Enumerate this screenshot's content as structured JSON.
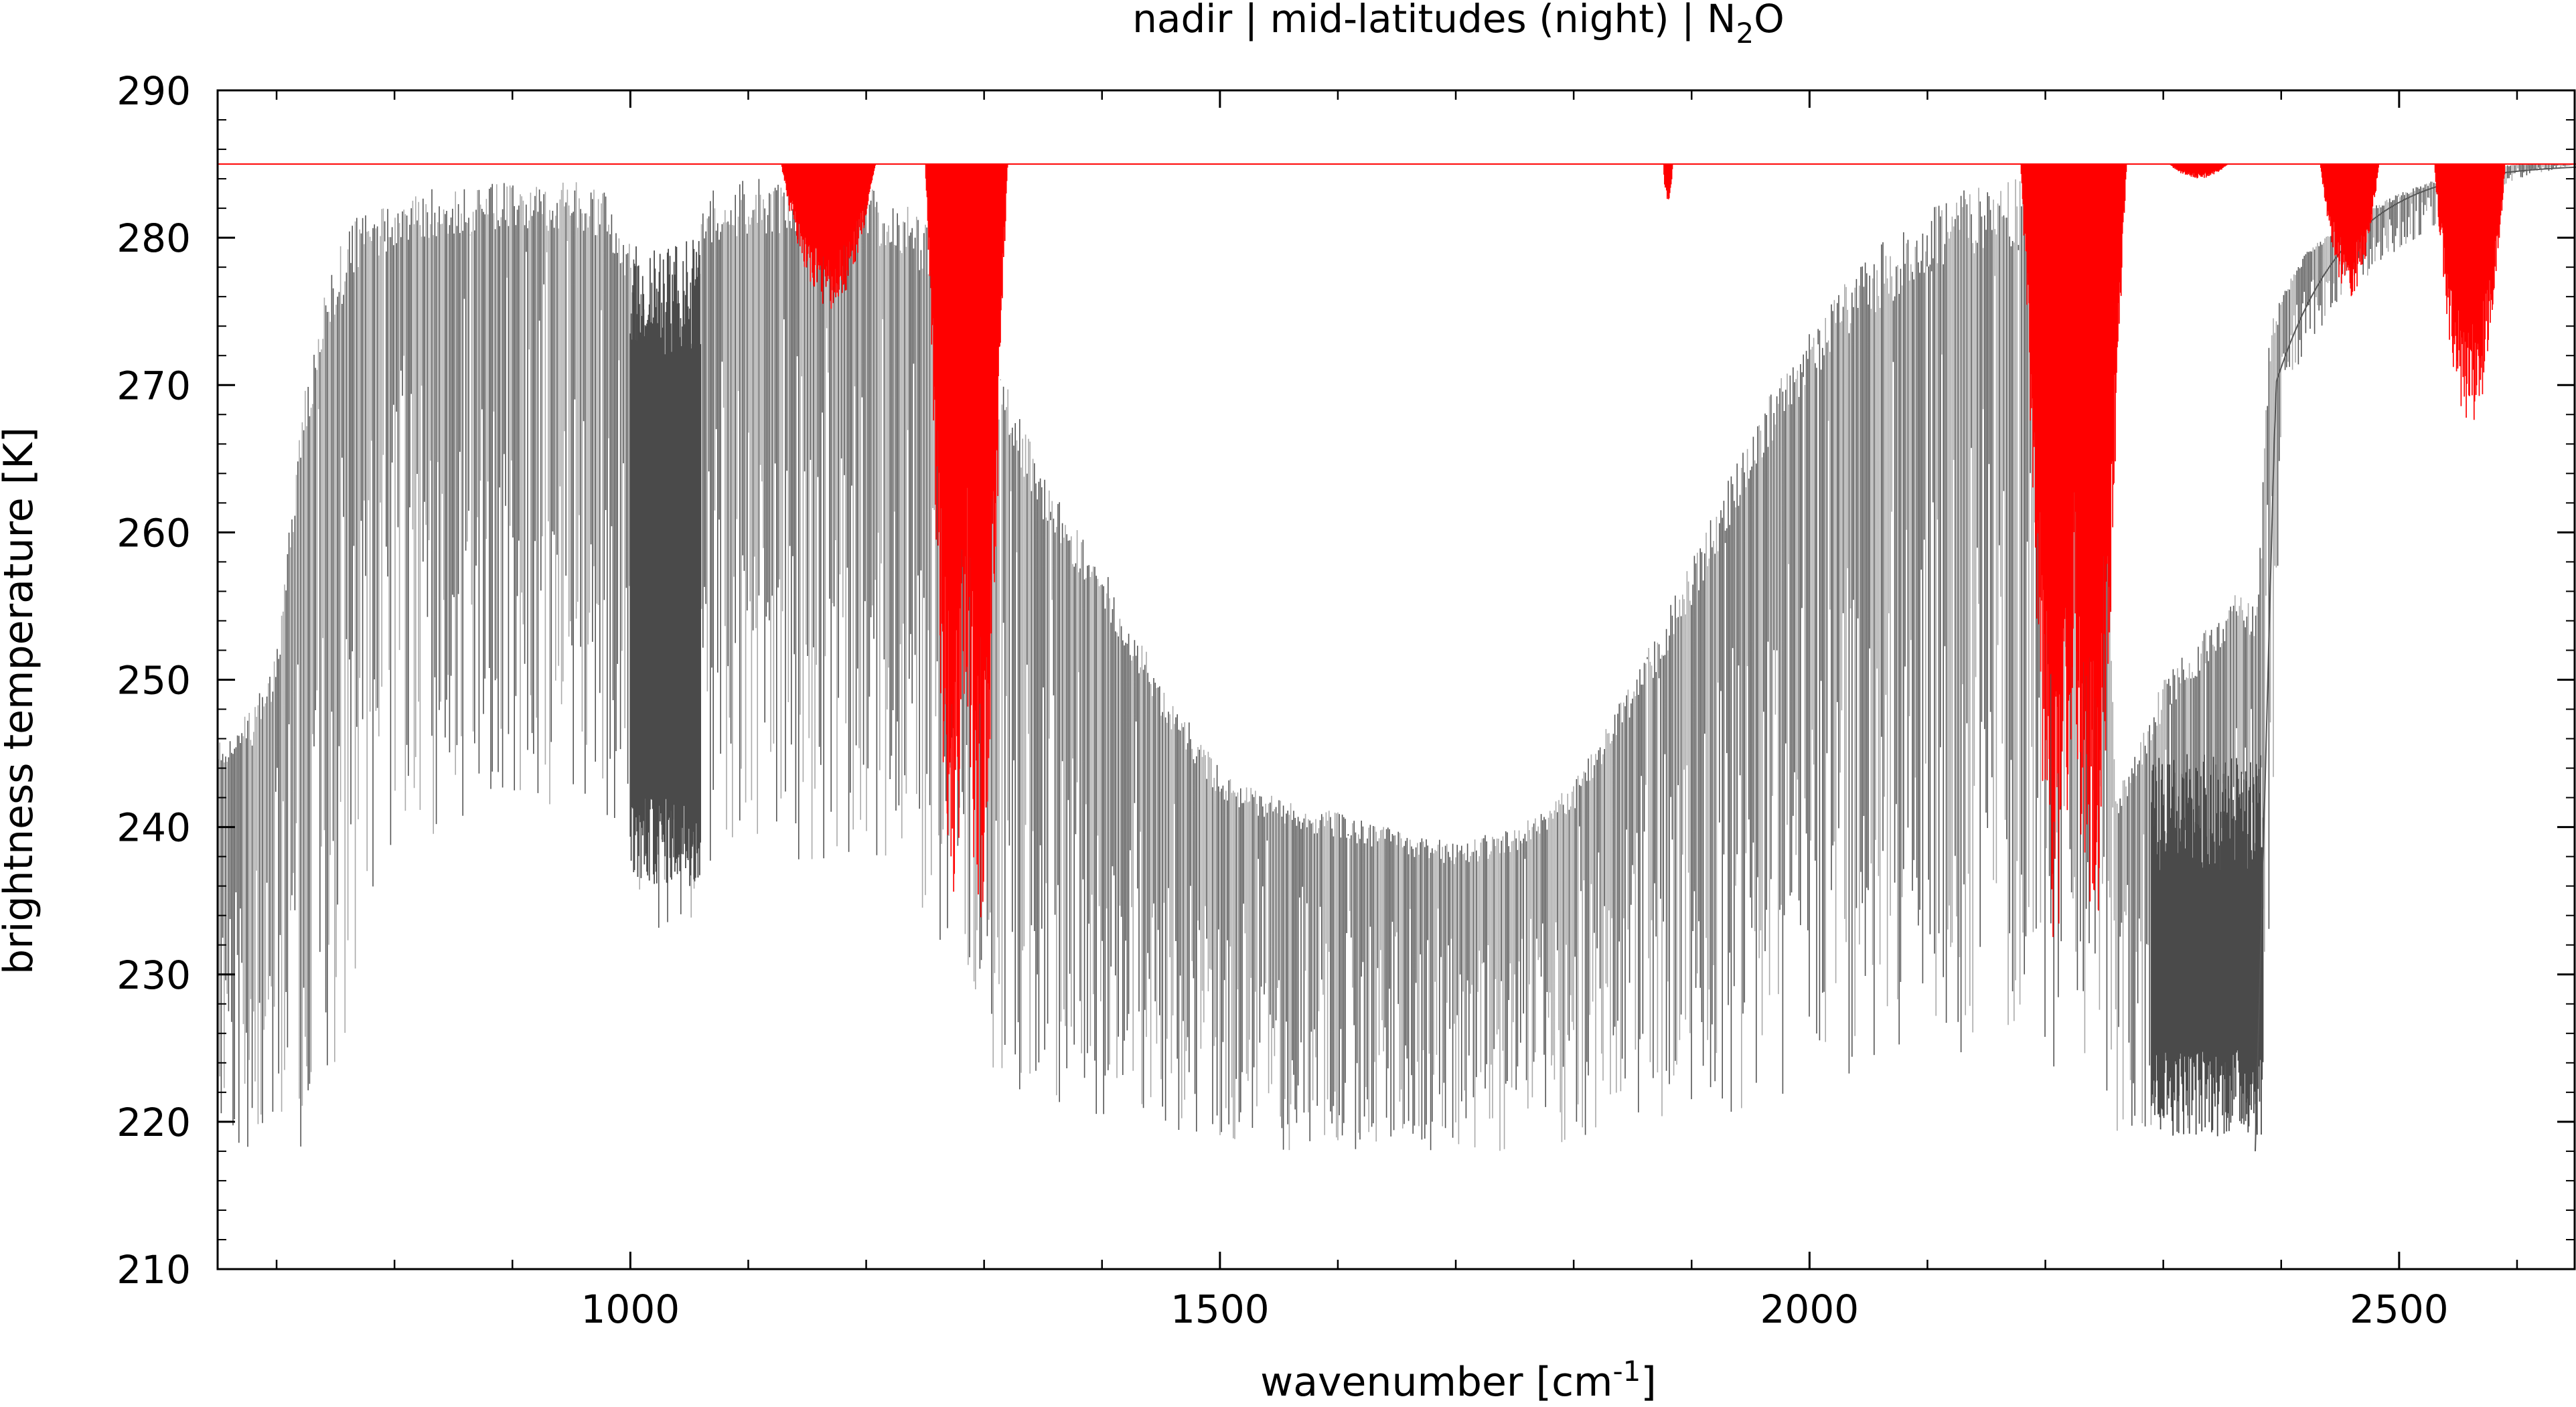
{
  "chart_data": {
    "type": "line",
    "title": {
      "prefix": "nadir | mid-latitudes (night) | N",
      "subscript": "2",
      "suffix": "O"
    },
    "xlabel": {
      "main": "wavenumber [cm",
      "superscript": "-1",
      "suffix": "]"
    },
    "ylabel": "brightness temperature [K]",
    "xlim": [
      650,
      2650
    ],
    "ylim": [
      210,
      290
    ],
    "x_ticks": [
      1000,
      1500,
      2000,
      2500
    ],
    "x_tick_labels": [
      "1000",
      "1500",
      "2000",
      "2500"
    ],
    "y_ticks": [
      210,
      220,
      230,
      240,
      250,
      260,
      270,
      280,
      290
    ],
    "y_tick_labels": [
      "210",
      "220",
      "230",
      "240",
      "250",
      "260",
      "270",
      "280",
      "290"
    ],
    "grid": false,
    "legend": "none",
    "colors": {
      "background_spectrum": "#555555",
      "background_spectrum_light": "#aaaaaa",
      "species_spectrum": "#ff0000"
    },
    "series": [
      {
        "color": "#555555",
        "envelope_x": [
          650,
          680,
          700,
          720,
          740,
          760,
          780,
          800,
          850,
          900,
          950,
          980,
          1000,
          1010,
          1030,
          1050,
          1060,
          1070,
          1100,
          1150,
          1200,
          1240,
          1260,
          1280,
          1300,
          1350,
          1400,
          1450,
          1500,
          1550,
          1600,
          1650,
          1700,
          1750,
          1800,
          1850,
          1900,
          1950,
          2000,
          2050,
          2100,
          2150,
          2200,
          2250,
          2260,
          2280,
          2300,
          2330,
          2360,
          2380,
          2390,
          2400,
          2420,
          2450,
          2500,
          2550,
          2600,
          2650
        ],
        "envelope_top": [
          246,
          248,
          252,
          268,
          276,
          281,
          282,
          283,
          283.5,
          283.8,
          284,
          283,
          280,
          276,
          266,
          272,
          282,
          283.5,
          284,
          284,
          283.5,
          282,
          280,
          277,
          274,
          264,
          258,
          250,
          244,
          242,
          241,
          240,
          239,
          240,
          243,
          250,
          258,
          267,
          274,
          279,
          282,
          284,
          284,
          270,
          242,
          246,
          250,
          253,
          256,
          255,
          274,
          276,
          279,
          281,
          283,
          284.5,
          285,
          285
        ],
        "envelope_bot": [
          218,
          217.5,
          217.5,
          218,
          221,
          226,
          232,
          238,
          240,
          240,
          241,
          240,
          238,
          234,
          232,
          233,
          236,
          237,
          237,
          237,
          237,
          236,
          232,
          227,
          224,
          221,
          220,
          219,
          218.5,
          218,
          218,
          218,
          218,
          218,
          218.5,
          219,
          220,
          221,
          222,
          223,
          224,
          225,
          224,
          222,
          219,
          218,
          218.5,
          220,
          222,
          218,
          230,
          268,
          272,
          276,
          279,
          282,
          284,
          285
        ]
      },
      {
        "color": "#ff0000",
        "baseline": 285,
        "bands": [
          {
            "center": 1168,
            "width": 80,
            "depth": 10
          },
          {
            "center": 1285,
            "width": 70,
            "depth": 62
          },
          {
            "center": 1880,
            "width": 8,
            "depth": 3
          },
          {
            "center": 2224,
            "width": 90,
            "depth": 65
          },
          {
            "center": 2330,
            "width": 50,
            "depth": 1
          },
          {
            "center": 2458,
            "width": 50,
            "depth": 9
          },
          {
            "center": 2560,
            "width": 60,
            "depth": 18
          }
        ]
      }
    ]
  }
}
